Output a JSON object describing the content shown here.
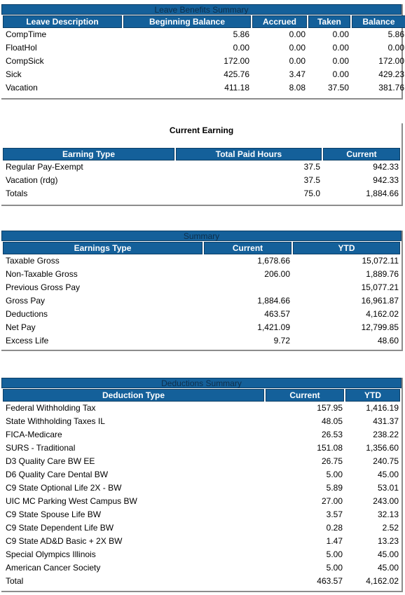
{
  "leave": {
    "title": "Leave Benefits Summary",
    "headers": [
      "Leave Description",
      "Beginning Balance",
      "Accrued",
      "Taken",
      "Balance"
    ],
    "rows": [
      [
        "CompTime",
        "5.86",
        "0.00",
        "0.00",
        "5.86"
      ],
      [
        "FloatHol",
        "0.00",
        "0.00",
        "0.00",
        "0.00"
      ],
      [
        "CompSick",
        "172.00",
        "0.00",
        "0.00",
        "172.00"
      ],
      [
        "Sick",
        "425.76",
        "3.47",
        "0.00",
        "429.23"
      ],
      [
        "Vacation",
        "411.18",
        "8.08",
        "37.50",
        "381.76"
      ]
    ]
  },
  "earning": {
    "title": "Current Earning",
    "headers": [
      "Earning Type",
      "Total Paid Hours",
      "Current"
    ],
    "rows": [
      [
        "Regular Pay-Exempt",
        "37.5",
        "942.33"
      ],
      [
        "Vacation (rdg)",
        "37.5",
        "942.33"
      ],
      [
        "Totals",
        "75.0",
        "1,884.66"
      ]
    ]
  },
  "summary": {
    "title": "Summary",
    "headers": [
      "Earnings Type",
      "Current",
      "YTD"
    ],
    "rows": [
      [
        "Taxable Gross",
        "1,678.66",
        "15,072.11"
      ],
      [
        "Non-Taxable Gross",
        "206.00",
        "1,889.76"
      ],
      [
        "Previous Gross Pay",
        "",
        "15,077.21"
      ],
      [
        "Gross Pay",
        "1,884.66",
        "16,961.87"
      ],
      [
        "Deductions",
        "463.57",
        "4,162.02"
      ],
      [
        "Net Pay",
        "1,421.09",
        "12,799.85"
      ],
      [
        "Excess Life",
        "9.72",
        "48.60"
      ]
    ]
  },
  "deductions": {
    "title": "Deductions Summary",
    "headers": [
      "Deduction Type",
      "Current",
      "YTD"
    ],
    "rows": [
      [
        "Federal Withholding Tax",
        "157.95",
        "1,416.19"
      ],
      [
        "State Withholding Taxes IL",
        "48.05",
        "431.37"
      ],
      [
        "FICA-Medicare",
        "26.53",
        "238.22"
      ],
      [
        "SURS - Traditional",
        "151.08",
        "1,356.60"
      ],
      [
        "D3 Quality Care BW EE",
        "26.75",
        "240.75"
      ],
      [
        "D6 Quality Care Dental BW",
        "5.00",
        "45.00"
      ],
      [
        "C9 State Optional Life 2X - BW",
        "5.89",
        "53.01"
      ],
      [
        "UIC MC Parking West Campus BW",
        "27.00",
        "243.00"
      ],
      [
        "C9 State Spouse Life BW",
        "3.57",
        "32.13"
      ],
      [
        "C9 State Dependent Life BW",
        "0.28",
        "2.52"
      ],
      [
        "C9 State AD&D Basic + 2X BW",
        "1.47",
        "13.23"
      ],
      [
        "Special Olympics Illinois",
        "5.00",
        "45.00"
      ],
      [
        "American Cancer Society",
        "5.00",
        "45.00"
      ],
      [
        "Total",
        "463.57",
        "4,162.02"
      ]
    ]
  }
}
